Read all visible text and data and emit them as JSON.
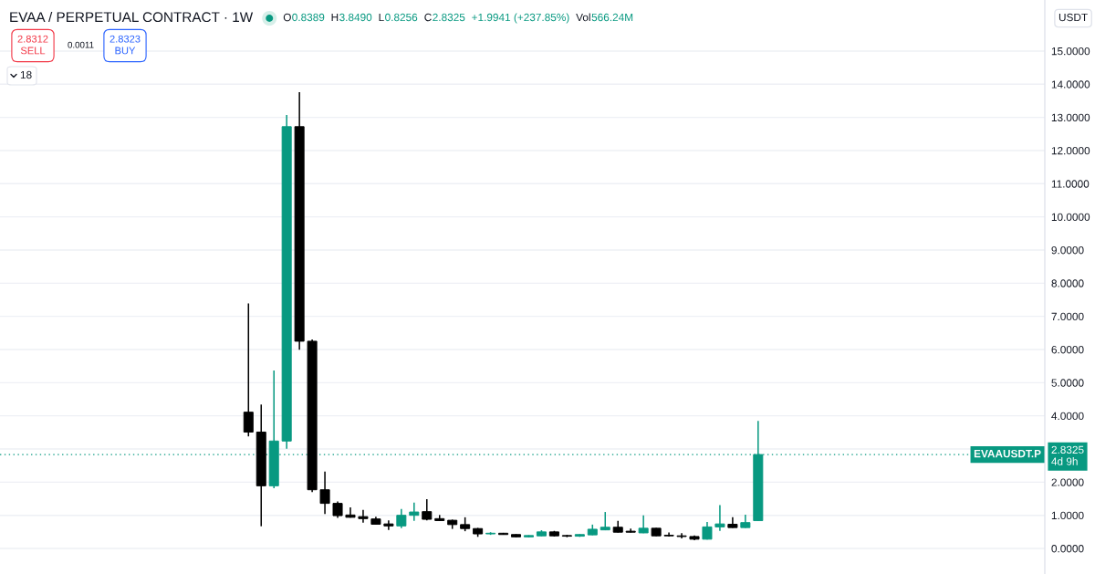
{
  "chart_data": {
    "type": "candlestick",
    "title": "EVAA / PERPETUAL CONTRACT · 1W",
    "ylabel": "USDT",
    "categories": [
      null,
      null,
      null,
      null,
      null,
      null,
      null,
      null,
      null,
      null,
      null,
      null,
      null,
      null,
      null,
      null,
      null,
      null,
      null,
      null,
      null,
      null,
      null,
      null,
      null,
      null,
      null,
      null,
      null,
      null,
      null,
      null,
      null,
      null,
      null,
      null,
      null,
      null,
      null,
      null,
      null,
      null,
      null,
      null,
      null,
      null,
      null,
      null,
      null,
      null,
      null,
      null,
      null,
      null,
      null,
      null,
      null,
      null,
      null,
      null,
      null,
      null,
      null,
      null,
      null,
      null,
      null,
      null,
      null,
      null,
      null,
      null,
      null,
      null,
      null,
      null,
      null,
      null,
      null,
      null,
      null,
      null
    ],
    "ohlc": [
      null,
      null,
      null,
      null,
      null,
      null,
      null,
      null,
      null,
      null,
      null,
      null,
      null,
      null,
      null,
      null,
      null,
      null,
      null,
      [
        4.11,
        7.39,
        3.38,
        3.51
      ],
      [
        3.51,
        4.34,
        0.67,
        1.89
      ],
      [
        1.89,
        5.37,
        1.82,
        3.24
      ],
      [
        3.24,
        13.07,
        3.01,
        12.72
      ],
      [
        12.72,
        13.76,
        5.99,
        6.25
      ],
      [
        6.25,
        6.3,
        1.7,
        1.77
      ],
      [
        1.77,
        2.32,
        1.04,
        1.36
      ],
      [
        1.36,
        1.42,
        0.92,
        0.99
      ],
      [
        1.01,
        1.24,
        0.93,
        0.94
      ],
      [
        0.96,
        1.16,
        0.78,
        0.9
      ],
      [
        0.89,
        0.96,
        0.72,
        0.73
      ],
      [
        0.74,
        0.85,
        0.56,
        0.68
      ],
      [
        0.68,
        1.19,
        0.61,
        1.0
      ],
      [
        1.0,
        1.38,
        0.83,
        1.1
      ],
      [
        1.11,
        1.49,
        0.85,
        0.88
      ],
      [
        0.9,
        1.01,
        0.83,
        0.84
      ],
      [
        0.85,
        0.87,
        0.59,
        0.72
      ],
      [
        0.72,
        0.94,
        0.52,
        0.6
      ],
      [
        0.6,
        0.62,
        0.35,
        0.44
      ],
      [
        0.44,
        0.49,
        0.41,
        0.46
      ],
      [
        0.46,
        0.47,
        0.42,
        0.42
      ],
      [
        0.42,
        0.43,
        0.34,
        0.35
      ],
      [
        0.35,
        0.4,
        0.33,
        0.39
      ],
      [
        0.38,
        0.55,
        0.37,
        0.5
      ],
      [
        0.5,
        0.53,
        0.36,
        0.38
      ],
      [
        0.39,
        0.41,
        0.34,
        0.37
      ],
      [
        0.37,
        0.43,
        0.35,
        0.42
      ],
      [
        0.41,
        0.72,
        0.4,
        0.58
      ],
      [
        0.56,
        1.1,
        0.55,
        0.64
      ],
      [
        0.64,
        0.83,
        0.48,
        0.49
      ],
      [
        0.52,
        0.6,
        0.48,
        0.49
      ],
      [
        0.47,
        1.0,
        0.46,
        0.61
      ],
      [
        0.61,
        0.62,
        0.37,
        0.38
      ],
      [
        0.4,
        0.48,
        0.36,
        0.38
      ],
      [
        0.38,
        0.46,
        0.3,
        0.36
      ],
      [
        0.36,
        0.39,
        0.25,
        0.28
      ],
      [
        0.28,
        0.8,
        0.27,
        0.65
      ],
      [
        0.65,
        1.31,
        0.53,
        0.74
      ],
      [
        0.73,
        0.94,
        0.62,
        0.63
      ],
      [
        0.63,
        1.02,
        0.62,
        0.78
      ],
      [
        0.8389,
        3.849,
        0.8256,
        2.8325
      ],
      null,
      null,
      null,
      null,
      null,
      null,
      null,
      null,
      null,
      null,
      null,
      null,
      null,
      null,
      null,
      null,
      null,
      null,
      null,
      null,
      null,
      null
    ],
    "colors": [
      null,
      null,
      null,
      null,
      null,
      null,
      null,
      null,
      null,
      null,
      null,
      null,
      null,
      null,
      null,
      null,
      null,
      null,
      null,
      "#000000",
      "#000000",
      "#089981",
      "#089981",
      "#000000",
      "#000000",
      "#000000",
      "#000000",
      "#000000",
      "#000000",
      "#000000",
      "#000000",
      "#089981",
      "#089981",
      "#000000",
      "#000000",
      "#000000",
      "#000000",
      "#000000",
      "#089981",
      "#000000",
      "#000000",
      "#089981",
      "#089981",
      "#000000",
      "#000000",
      "#089981",
      "#089981",
      "#089981",
      "#000000",
      "#000000",
      "#089981",
      "#000000",
      "#000000",
      "#000000",
      "#000000",
      "#089981",
      "#089981",
      "#000000",
      "#089981",
      "#089981",
      null,
      null,
      null,
      null,
      null,
      null,
      null,
      null,
      null,
      null,
      null,
      null,
      null,
      null,
      null,
      null,
      null,
      null,
      null,
      null,
      null,
      null
    ],
    "ylim": [
      -0.77,
      16.54
    ],
    "yticks": [
      {
        "value": 0,
        "label": "0.0000"
      },
      {
        "value": 1,
        "label": "1.0000"
      },
      {
        "value": 2,
        "label": "2.0000"
      },
      {
        "value": 3,
        "label": null
      },
      {
        "value": 4,
        "label": "4.0000"
      },
      {
        "value": 5,
        "label": "5.0000"
      },
      {
        "value": 6,
        "label": "6.0000"
      },
      {
        "value": 7,
        "label": "7.0000"
      },
      {
        "value": 8,
        "label": "8.0000"
      },
      {
        "value": 9,
        "label": "9.0000"
      },
      {
        "value": 10,
        "label": "10.0000"
      },
      {
        "value": 11,
        "label": "11.0000"
      },
      {
        "value": 12,
        "label": "12.0000"
      },
      {
        "value": 13,
        "label": "13.0000"
      },
      {
        "value": 14,
        "label": "14.0000"
      },
      {
        "value": 15,
        "label": "15.0000"
      }
    ],
    "ref_lines": [
      {
        "axis": "y",
        "value": 2.8325,
        "label": "EVAAUSDT.P",
        "color": "#089981",
        "line_style": "dotted"
      }
    ],
    "annotations": [
      "O",
      "0.8389",
      "H",
      "3.8490",
      "L",
      "0.8256",
      "C",
      "2.8325",
      "+1.9941 (+237.85%)",
      "Vol",
      "566.24M",
      "2.8312\nSELL",
      "0.0011",
      "2.8323\nBUY",
      "18",
      "2.8325\n4d 9h"
    ],
    "grid": "y",
    "tick_labels": "y"
  }
}
